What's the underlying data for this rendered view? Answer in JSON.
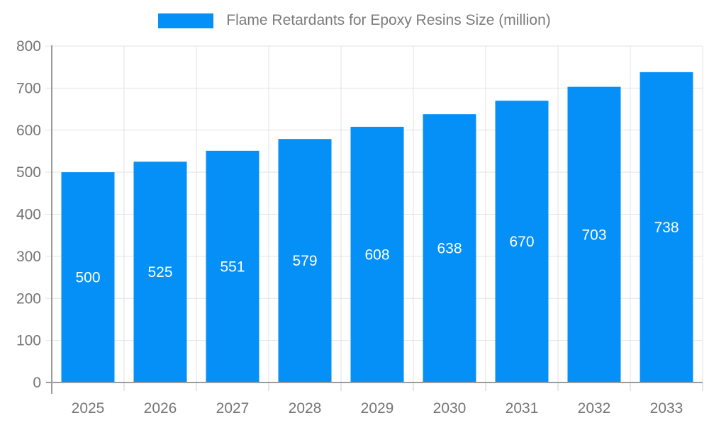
{
  "chart_data": {
    "type": "bar",
    "title": "Flame Retardants for Epoxy Resins Size (million)",
    "legend_entries": [
      "Flame Retardants for Epoxy Resins Size (million)"
    ],
    "legend_position": "top",
    "categories": [
      "2025",
      "2026",
      "2027",
      "2028",
      "2029",
      "2030",
      "2031",
      "2032",
      "2033"
    ],
    "values": [
      500,
      525,
      551,
      579,
      608,
      638,
      670,
      703,
      738
    ],
    "xlabel": "",
    "ylabel": "",
    "ylim": [
      0,
      800
    ],
    "ytick_step": 100,
    "ytick_labels": [
      "0",
      "100",
      "200",
      "300",
      "400",
      "500",
      "600",
      "700",
      "800"
    ],
    "grid": true,
    "bar_labels_inside": true,
    "colors": {
      "bar": "#0590f8",
      "bar_label": "#ffffff",
      "axis_label": "#757575",
      "legend_text": "#7c7c7c",
      "grid_line": "#e3e3e3",
      "axis_line": "#9b9b9b",
      "tick_line": "#cccccc",
      "background": "#ffffff"
    }
  }
}
